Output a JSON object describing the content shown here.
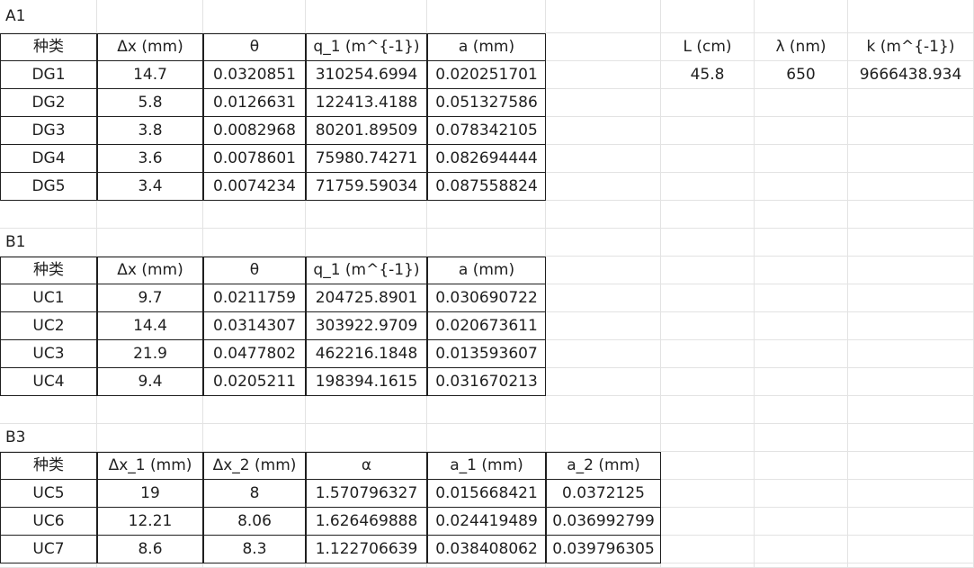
{
  "tables": [
    {
      "title": "A1",
      "headers": [
        "种类",
        "Δx (mm)",
        "θ",
        "q_1 (m^{-1})",
        "a (mm)"
      ],
      "rows": [
        [
          "DG1",
          "14.7",
          "0.0320851",
          "310254.6994",
          "0.020251701"
        ],
        [
          "DG2",
          "5.8",
          "0.0126631",
          "122413.4188",
          "0.051327586"
        ],
        [
          "DG3",
          "3.8",
          "0.0082968",
          "80201.89509",
          "0.078342105"
        ],
        [
          "DG4",
          "3.6",
          "0.0078601",
          "75980.74271",
          "0.082694444"
        ],
        [
          "DG5",
          "3.4",
          "0.0074234",
          "71759.59034",
          "0.087558824"
        ]
      ]
    },
    {
      "title": "B1",
      "headers": [
        "种类",
        "Δx (mm)",
        "θ",
        "q_1 (m^{-1})",
        "a (mm)"
      ],
      "rows": [
        [
          "UC1",
          "9.7",
          "0.0211759",
          "204725.8901",
          "0.030690722"
        ],
        [
          "UC2",
          "14.4",
          "0.0314307",
          "303922.9709",
          "0.020673611"
        ],
        [
          "UC3",
          "21.9",
          "0.0477802",
          "462216.1848",
          "0.013593607"
        ],
        [
          "UC4",
          "9.4",
          "0.0205211",
          "198394.1615",
          "0.031670213"
        ]
      ]
    },
    {
      "title": "B3",
      "headers": [
        "种类",
        "Δx_1 (mm)",
        "Δx_2 (mm)",
        "α",
        "a_1 (mm)",
        "a_2 (mm)"
      ],
      "rows": [
        [
          "UC5",
          "19",
          "8",
          "1.570796327",
          "0.015668421",
          "0.0372125"
        ],
        [
          "UC6",
          "12.21",
          "8.06",
          "1.626469888",
          "0.024419489",
          "0.036992799"
        ],
        [
          "UC7",
          "8.6",
          "8.3",
          "1.122706639",
          "0.038408062",
          "0.039796305"
        ]
      ]
    }
  ],
  "constants": {
    "headers": [
      "L (cm)",
      "λ (nm)",
      "k (m^{-1})"
    ],
    "values": [
      "45.8",
      "650",
      "9666438.934"
    ]
  }
}
